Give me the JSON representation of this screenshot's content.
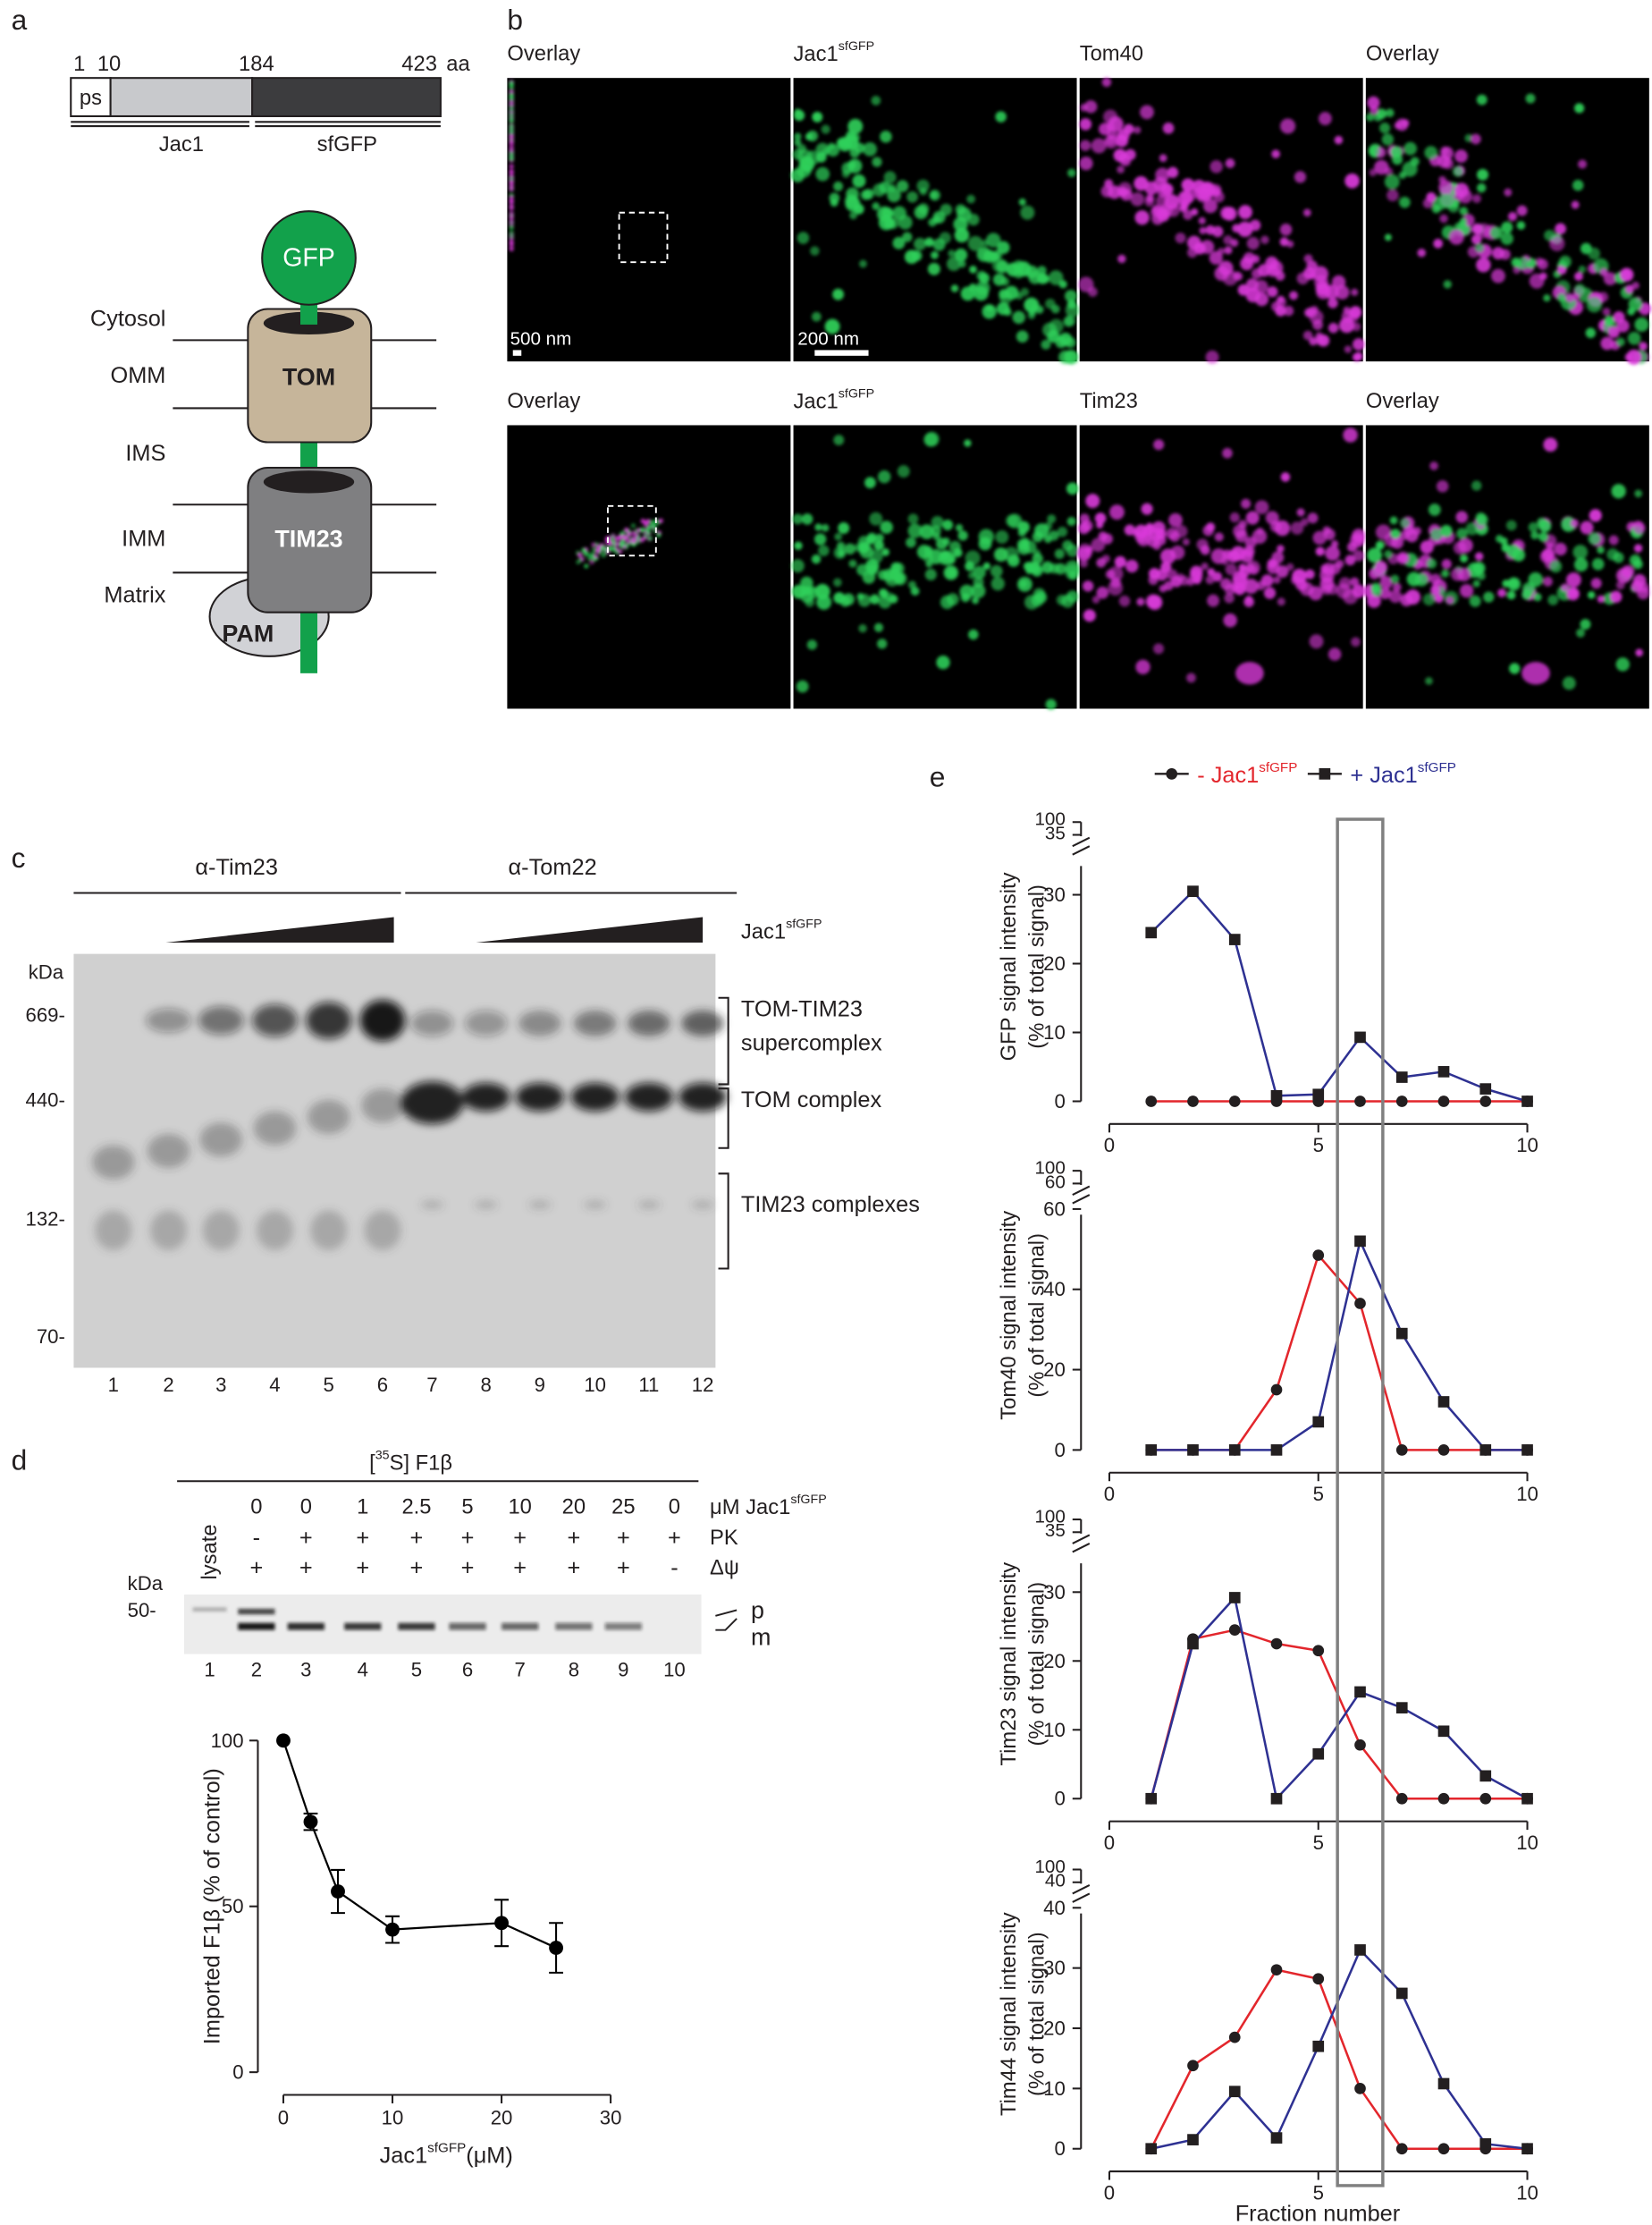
{
  "panel_labels": [
    "a",
    "b",
    "c",
    "d",
    "e"
  ],
  "panel_a": {
    "positions": [
      "1",
      "10",
      "184",
      "423"
    ],
    "unit": "aa",
    "segments": [
      "ps",
      "Jac1",
      "sfGFP"
    ],
    "layers": [
      "Cytosol",
      "OMM",
      "IMS",
      "IMM",
      "Matrix"
    ],
    "complexes": [
      "GFP",
      "TOM",
      "TIM23",
      "PAM"
    ]
  },
  "panel_b": {
    "rows": [
      {
        "titles": [
          "Overlay",
          "Jac1",
          "Tom40",
          "Overlay"
        ]
      },
      {
        "titles": [
          "Overlay",
          "Jac1",
          "Tim23",
          "Overlay"
        ]
      }
    ],
    "superscript": "sfGFP",
    "scale_bars": [
      "500 nm",
      "200 nm"
    ]
  },
  "panel_c": {
    "antibodies": [
      "α-Tim23",
      "α-Tom22"
    ],
    "titration": "Jac1",
    "titration_sup": "sfGFP",
    "marker_unit": "kDa",
    "markers": [
      "669-",
      "440-",
      "132-",
      "70-"
    ],
    "lanes": [
      "1",
      "2",
      "3",
      "4",
      "5",
      "6",
      "7",
      "8",
      "9",
      "10",
      "11",
      "12"
    ],
    "complexes": [
      "TOM-TIM23",
      "supercomplex",
      "TOM complex",
      "TIM23 complexes"
    ]
  },
  "panel_d": {
    "substrate": [
      "[",
      "35",
      "S] F1β"
    ],
    "conc_label": "μM Jac1",
    "conc_sup": "sfGFP",
    "lysate": "lysate",
    "conc": [
      "0",
      "0",
      "1",
      "2.5",
      "5",
      "10",
      "20",
      "25",
      "0"
    ],
    "pk_label": "PK",
    "pk": [
      "-",
      "+",
      "+",
      "+",
      "+",
      "+",
      "+",
      "+",
      "+"
    ],
    "dpsi_label": "Δψ",
    "dpsi": [
      "+",
      "+",
      "+",
      "+",
      "+",
      "+",
      "+",
      "+",
      "-"
    ],
    "marker_unit": "kDa",
    "marker": "50-",
    "lanes": [
      "1",
      "2",
      "3",
      "4",
      "5",
      "6",
      "7",
      "8",
      "9",
      "10"
    ],
    "forms": [
      "p",
      "m"
    ]
  },
  "chart_data": [
    {
      "type": "line",
      "x": [
        0,
        2.5,
        5,
        10,
        20,
        25
      ],
      "values": [
        100,
        75.5,
        54.5,
        43,
        45,
        37.5
      ],
      "errors": [
        0,
        2.5,
        6.5,
        4,
        7,
        7.5
      ],
      "color": "#000000",
      "xlim": [
        0,
        30
      ],
      "xticks": [
        0,
        10,
        20,
        30
      ],
      "ylim": [
        0,
        100
      ],
      "yticks": [
        0,
        50,
        100
      ],
      "y_label": "Imported F1β (% of control)",
      "x_label": "Jac1",
      "x_label_sup": "sfGFP",
      "x_label_unit": "(μM)"
    },
    {
      "type": "line",
      "x": [
        1,
        2,
        3,
        4,
        5,
        6,
        7,
        8,
        9,
        10
      ],
      "series": [
        {
          "name": "- Jac1",
          "name_sup": "sfGFP",
          "color": "#e3262c",
          "marker": "circle",
          "values": [
            0,
            0,
            0,
            0,
            0,
            0,
            0,
            0,
            0,
            0
          ]
        },
        {
          "name": "+ Jac1",
          "name_sup": "sfGFP",
          "color": "#2e3192",
          "marker": "square",
          "values": [
            24.5,
            30.5,
            23.5,
            0.8,
            1,
            9.3,
            3.5,
            4.3,
            1.8,
            0
          ]
        }
      ],
      "xlim": [
        0,
        10
      ],
      "xticks": [
        0,
        5,
        10
      ],
      "ylim": [
        0,
        35
      ],
      "yticks": [
        0,
        10,
        20,
        30
      ],
      "ybreak": [
        100,
        35
      ],
      "y_label": [
        "GFP signal intensity",
        "(% of total signal)"
      ]
    },
    {
      "type": "line",
      "x": [
        1,
        2,
        3,
        4,
        5,
        6,
        7,
        8,
        9,
        10
      ],
      "series": [
        {
          "color": "#e3262c",
          "marker": "circle",
          "values": [
            0,
            0,
            0,
            15,
            48.5,
            36.5,
            0,
            0,
            0,
            0
          ]
        },
        {
          "color": "#2e3192",
          "marker": "square",
          "values": [
            0,
            0,
            0,
            0,
            7,
            52,
            29,
            12,
            0,
            0
          ]
        }
      ],
      "xlim": [
        0,
        10
      ],
      "xticks": [
        0,
        5,
        10
      ],
      "ylim": [
        0,
        60
      ],
      "yticks": [
        0,
        20,
        40,
        60
      ],
      "ybreak": [
        100,
        60
      ],
      "y_label": [
        "Tom40 signal intensity",
        "(% of total signal)"
      ]
    },
    {
      "type": "line",
      "x": [
        1,
        2,
        3,
        4,
        5,
        6,
        7,
        8,
        9,
        10
      ],
      "series": [
        {
          "color": "#e3262c",
          "marker": "circle",
          "values": [
            0,
            23.2,
            24.5,
            22.5,
            21.5,
            7.8,
            0,
            0,
            0,
            0
          ]
        },
        {
          "color": "#2e3192",
          "marker": "square",
          "values": [
            0,
            22.5,
            29.2,
            0,
            6.5,
            15.5,
            13.2,
            9.8,
            3.3,
            0
          ]
        }
      ],
      "xlim": [
        0,
        10
      ],
      "xticks": [
        0,
        5,
        10
      ],
      "ylim": [
        0,
        35
      ],
      "yticks": [
        0,
        10,
        20,
        30
      ],
      "ybreak": [
        100,
        35
      ],
      "y_label": [
        "Tim23 signal intensity",
        "(% of total signal)"
      ]
    },
    {
      "type": "line",
      "x": [
        1,
        2,
        3,
        4,
        5,
        6,
        7,
        8,
        9,
        10
      ],
      "series": [
        {
          "color": "#e3262c",
          "marker": "circle",
          "values": [
            0,
            13.8,
            18.5,
            29.7,
            28.2,
            10,
            0,
            0,
            0,
            0
          ]
        },
        {
          "color": "#2e3192",
          "marker": "square",
          "values": [
            0,
            1.5,
            9.5,
            1.8,
            17,
            33,
            25.8,
            10.8,
            0.8,
            0
          ]
        }
      ],
      "xlim": [
        0,
        10
      ],
      "xticks": [
        0,
        5,
        10
      ],
      "ylim": [
        0,
        40
      ],
      "yticks": [
        0,
        10,
        20,
        30,
        40
      ],
      "ybreak": [
        100,
        40
      ],
      "y_label": [
        "Tim44 signal intensity",
        "(% of total signal)"
      ],
      "x_label": "Fraction number"
    }
  ]
}
